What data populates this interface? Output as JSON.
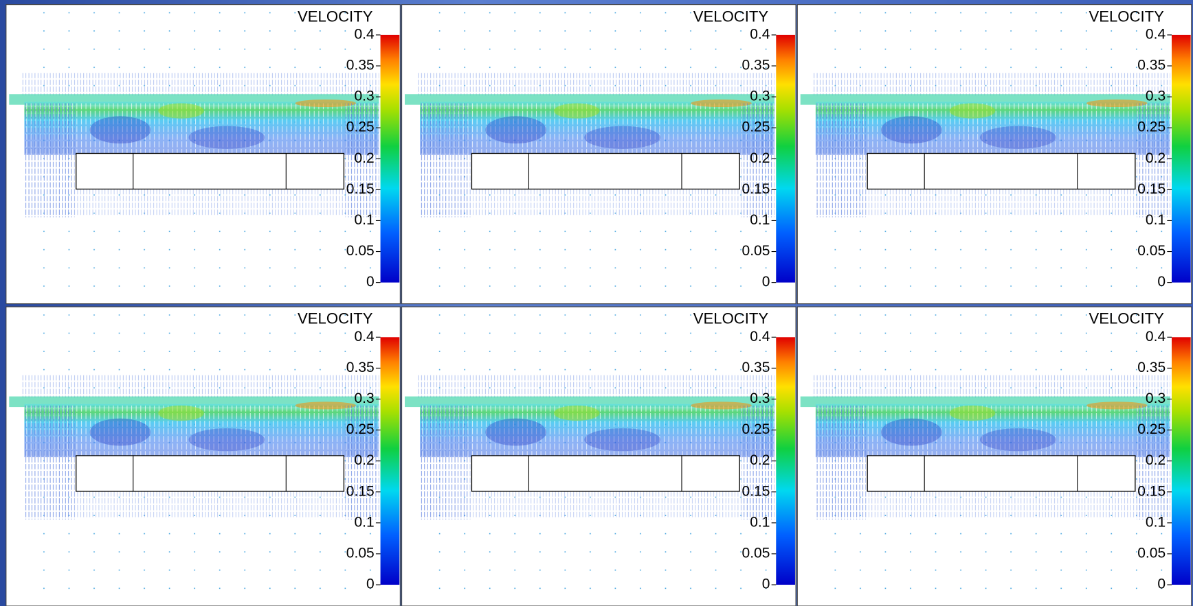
{
  "panels": [
    {
      "title": "VELOCITY",
      "colorbar": {
        "range": [
          0,
          0.4
        ],
        "ticks": [
          0,
          0.05,
          0.1,
          0.15,
          0.2,
          0.25,
          0.3,
          0.35,
          0.4
        ]
      }
    },
    {
      "title": "VELOCITY",
      "colorbar": {
        "range": [
          0,
          0.4
        ],
        "ticks": [
          0,
          0.05,
          0.1,
          0.15,
          0.2,
          0.25,
          0.3,
          0.35,
          0.4
        ]
      }
    },
    {
      "title": "VELOCITY",
      "colorbar": {
        "range": [
          0,
          0.4
        ],
        "ticks": [
          0,
          0.05,
          0.1,
          0.15,
          0.2,
          0.25,
          0.3,
          0.35,
          0.4
        ]
      }
    },
    {
      "title": "VELOCITY",
      "colorbar": {
        "range": [
          0,
          0.4
        ],
        "ticks": [
          0,
          0.05,
          0.1,
          0.15,
          0.2,
          0.25,
          0.3,
          0.35,
          0.4
        ]
      }
    },
    {
      "title": "VELOCITY",
      "colorbar": {
        "range": [
          0,
          0.4
        ],
        "ticks": [
          0,
          0.05,
          0.1,
          0.15,
          0.2,
          0.25,
          0.3,
          0.35,
          0.4
        ]
      }
    },
    {
      "title": "VELOCITY",
      "colorbar": {
        "range": [
          0,
          0.4
        ],
        "ticks": [
          0,
          0.05,
          0.1,
          0.15,
          0.2,
          0.25,
          0.3,
          0.35,
          0.4
        ]
      }
    }
  ]
}
